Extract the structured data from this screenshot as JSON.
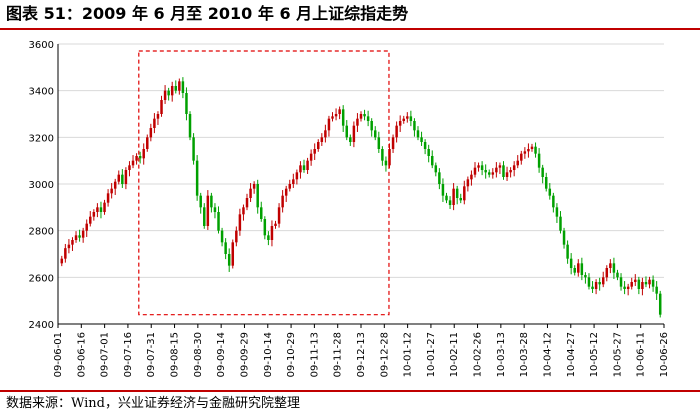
{
  "title": "图表 51：2009 年 6 月至 2010 年 6 月上证综指走势",
  "source": "数据来源：Wind，兴业证券经济与金融研究院整理",
  "colors": {
    "up": "#c00000",
    "down": "#00a000",
    "grid": "#d9d9d9",
    "rule": "#c00000",
    "highlight": "#e00000"
  },
  "chart_data": {
    "type": "candlestick",
    "title": "",
    "xlabel": "",
    "ylabel": "",
    "ylim": [
      2400,
      3600
    ],
    "yticks": [
      2400,
      2600,
      2800,
      3000,
      3200,
      3400,
      3600
    ],
    "grid": true,
    "x_tick_labels": [
      "09-06-01",
      "09-06-16",
      "09-07-01",
      "09-07-16",
      "09-07-31",
      "09-08-15",
      "09-08-30",
      "09-09-14",
      "09-09-29",
      "09-10-14",
      "09-10-29",
      "09-11-13",
      "09-11-28",
      "09-12-13",
      "09-12-28",
      "10-01-12",
      "10-01-27",
      "10-02-11",
      "10-02-26",
      "10-03-13",
      "10-03-28",
      "10-04-12",
      "10-04-27",
      "10-05-12",
      "10-05-27",
      "10-06-11",
      "10-06-26"
    ],
    "closes": [
      2680,
      2725,
      2740,
      2760,
      2780,
      2770,
      2800,
      2830,
      2860,
      2880,
      2900,
      2880,
      2920,
      2960,
      2980,
      3010,
      3040,
      3000,
      3060,
      3080,
      3100,
      3120,
      3110,
      3150,
      3200,
      3240,
      3280,
      3300,
      3360,
      3400,
      3380,
      3420,
      3400,
      3440,
      3390,
      3300,
      3200,
      3100,
      2950,
      2900,
      2820,
      2950,
      2900,
      2880,
      2800,
      2750,
      2700,
      2650,
      2750,
      2800,
      2870,
      2900,
      2940,
      2980,
      3000,
      2900,
      2850,
      2780,
      2760,
      2820,
      2830,
      2900,
      2950,
      2980,
      3000,
      3020,
      3050,
      3080,
      3060,
      3100,
      3130,
      3150,
      3180,
      3200,
      3230,
      3280,
      3290,
      3300,
      3320,
      3250,
      3200,
      3180,
      3250,
      3280,
      3300,
      3290,
      3270,
      3230,
      3200,
      3150,
      3100,
      3080,
      3150,
      3200,
      3250,
      3270,
      3280,
      3290,
      3270,
      3230,
      3200,
      3180,
      3150,
      3120,
      3080,
      3050,
      3000,
      2950,
      2930,
      2910,
      2980,
      2940,
      2930,
      2990,
      3020,
      3040,
      3070,
      3080,
      3060,
      3050,
      3040,
      3050,
      3070,
      3080,
      3030,
      3050,
      3060,
      3080,
      3100,
      3130,
      3140,
      3150,
      3160,
      3130,
      3070,
      3030,
      2980,
      2950,
      2900,
      2860,
      2800,
      2740,
      2680,
      2640,
      2620,
      2660,
      2610,
      2600,
      2560,
      2550,
      2580,
      2570,
      2600,
      2640,
      2660,
      2620,
      2600,
      2560,
      2550,
      2560,
      2580,
      2590,
      2550,
      2580,
      2570,
      2590,
      2560,
      2530,
      2440
    ]
  },
  "highlight_box": {
    "x_start": "09-07-23",
    "x_end": "09-12-31",
    "y_low": 2440,
    "y_high": 3570
  }
}
